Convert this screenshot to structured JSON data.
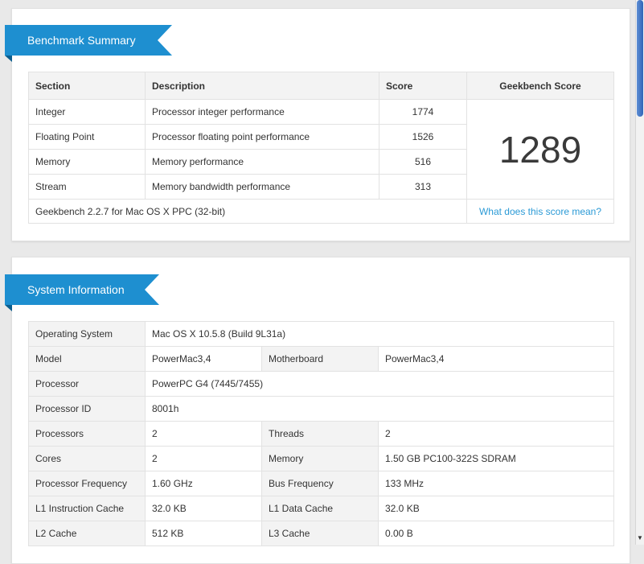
{
  "benchmark_summary": {
    "title": "Benchmark Summary",
    "headers": [
      "Section",
      "Description",
      "Score",
      "Geekbench Score"
    ],
    "rows": [
      {
        "section": "Integer",
        "description": "Processor integer performance",
        "score": "1774"
      },
      {
        "section": "Floating Point",
        "description": "Processor floating point performance",
        "score": "1526"
      },
      {
        "section": "Memory",
        "description": "Memory performance",
        "score": "516"
      },
      {
        "section": "Stream",
        "description": "Memory bandwidth performance",
        "score": "313"
      }
    ],
    "geekbench_score": "1289",
    "version_text": "Geekbench 2.2.7 for Mac OS X PPC (32-bit)",
    "score_link": "What does this score mean?"
  },
  "system_information": {
    "title": "System Information",
    "os_label": "Operating System",
    "os_value": "Mac OS X 10.5.8 (Build 9L31a)",
    "model_label": "Model",
    "model_value": "PowerMac3,4",
    "motherboard_label": "Motherboard",
    "motherboard_value": "PowerMac3,4",
    "processor_label": "Processor",
    "processor_value": "PowerPC G4 (7445/7455)",
    "processor_id_label": "Processor ID",
    "processor_id_value": "8001h",
    "processors_label": "Processors",
    "processors_value": "2",
    "threads_label": "Threads",
    "threads_value": "2",
    "cores_label": "Cores",
    "cores_value": "2",
    "memory_label": "Memory",
    "memory_value": "1.50 GB PC100-322S SDRAM",
    "proc_freq_label": "Processor Frequency",
    "proc_freq_value": "1.60 GHz",
    "bus_freq_label": "Bus Frequency",
    "bus_freq_value": "133 MHz",
    "l1i_label": "L1 Instruction Cache",
    "l1i_value": "32.0 KB",
    "l1d_label": "L1 Data Cache",
    "l1d_value": "32.0 KB",
    "l2_label": "L2 Cache",
    "l2_value": "512 KB",
    "l3_label": "L3 Cache",
    "l3_value": "0.00 B"
  },
  "colors": {
    "accent": "#1e8fd0",
    "link": "#2b9ad6"
  }
}
